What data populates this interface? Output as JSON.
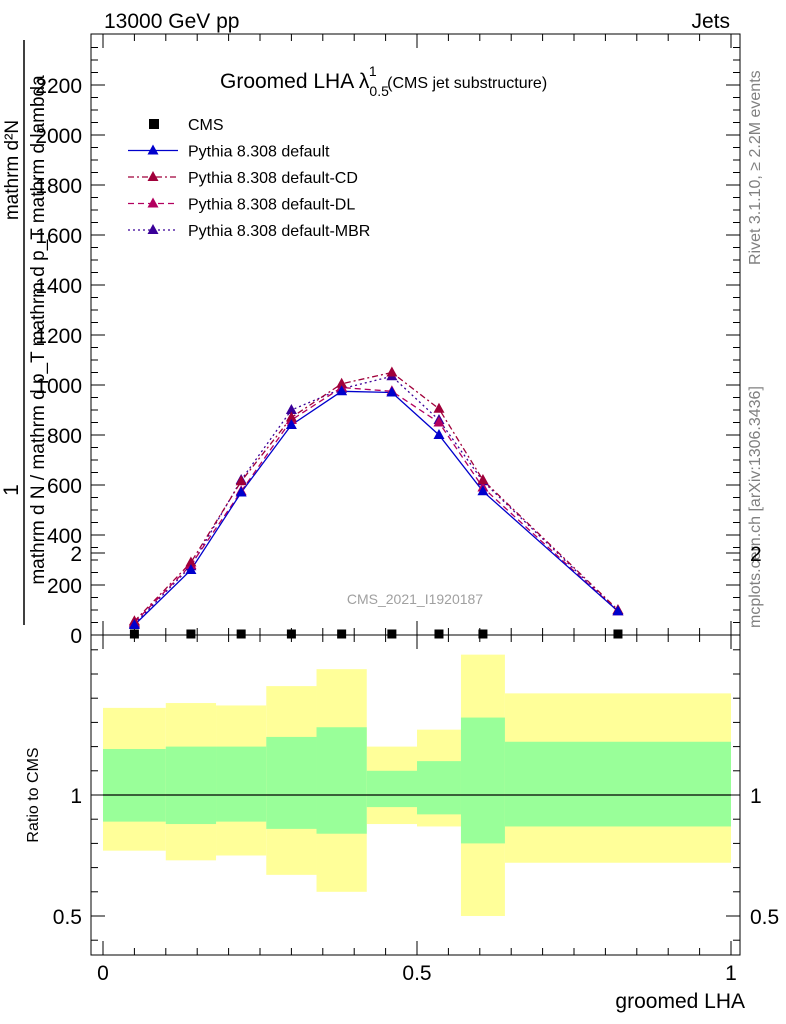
{
  "header": {
    "energy_label": "13000 GeV pp",
    "process_label": "Jets",
    "rivet_label": "Rivet 3.1.10, ≥ 2.2M events",
    "mcplots_label": "mcplots.cern.ch [arXiv:1306.3436]",
    "watermark": "CMS_2021_I1920187"
  },
  "main_title": {
    "prefix": "Groomed LHA ",
    "lambda": "λ",
    "subscript": "0.5",
    "superscript": "1",
    "suffix": " (CMS jet substructure)"
  },
  "ylabel_main": {
    "one": "1",
    "den": "mathrm d N / mathrm d p_T mathrm d p_T mathrm d lambda",
    "num": "mathrm d²N"
  },
  "ylabel_ratio": "Ratio to CMS",
  "xlabel": "groomed LHA",
  "colors": {
    "band_inner": "#99ff99",
    "band_outer": "#ffff99",
    "default": "#0000cc",
    "default_cd": "#a0003a",
    "default_dl": "#b3005f",
    "default_mbr": "#3a0099"
  },
  "chart_data": [
    {
      "type": "line",
      "panel": "main",
      "xlim": [
        0,
        1
      ],
      "ylim": [
        0,
        2400
      ],
      "y_ticks": [
        0,
        200,
        400,
        600,
        800,
        1000,
        1200,
        1400,
        1600,
        1800,
        2000,
        2200
      ],
      "y_tick_labels": [
        "0",
        "200",
        "400",
        "600",
        "800",
        "1000",
        "1200",
        "1400",
        "1600",
        "1800",
        "2000",
        "2200"
      ],
      "x": [
        0.05,
        0.14,
        0.22,
        0.3,
        0.38,
        0.46,
        0.535,
        0.605,
        0.82
      ],
      "legend_position": "top-left",
      "series": [
        {
          "name": "CMS",
          "values": [
            0,
            0,
            0,
            0,
            0,
            0,
            0,
            0,
            0
          ]
        },
        {
          "name": "Pythia 8.308 default",
          "values": [
            40,
            260,
            570,
            840,
            975,
            970,
            800,
            575,
            95
          ]
        },
        {
          "name": "Pythia 8.308 default-CD",
          "values": [
            55,
            290,
            615,
            870,
            1005,
            1050,
            905,
            620,
            100
          ]
        },
        {
          "name": "Pythia 8.308 default-DL",
          "values": [
            50,
            280,
            575,
            860,
            990,
            975,
            850,
            590,
            95
          ]
        },
        {
          "name": "Pythia 8.308 default-MBR",
          "values": [
            45,
            275,
            620,
            900,
            985,
            1035,
            860,
            615,
            95
          ]
        }
      ]
    },
    {
      "type": "area",
      "panel": "ratio",
      "xlim": [
        0,
        1
      ],
      "ylim": [
        0.35,
        2.3
      ],
      "x_ticks": [
        0,
        0.5,
        1
      ],
      "x_tick_labels": [
        "0",
        "0.5",
        "1"
      ],
      "y_ticks": [
        0.5,
        1,
        2
      ],
      "y_tick_labels": [
        "0.5",
        "1",
        "2"
      ],
      "bins": [
        {
          "lo": 0.0,
          "hi": 0.1,
          "inner": [
            0.89,
            1.19
          ],
          "outer": [
            0.77,
            1.36
          ]
        },
        {
          "lo": 0.1,
          "hi": 0.18,
          "inner": [
            0.88,
            1.2
          ],
          "outer": [
            0.73,
            1.38
          ]
        },
        {
          "lo": 0.18,
          "hi": 0.26,
          "inner": [
            0.89,
            1.2
          ],
          "outer": [
            0.75,
            1.37
          ]
        },
        {
          "lo": 0.26,
          "hi": 0.34,
          "inner": [
            0.86,
            1.24
          ],
          "outer": [
            0.67,
            1.45
          ]
        },
        {
          "lo": 0.34,
          "hi": 0.42,
          "inner": [
            0.84,
            1.28
          ],
          "outer": [
            0.6,
            1.52
          ]
        },
        {
          "lo": 0.42,
          "hi": 0.5,
          "inner": [
            0.95,
            1.1
          ],
          "outer": [
            0.88,
            1.2
          ]
        },
        {
          "lo": 0.5,
          "hi": 0.57,
          "inner": [
            0.92,
            1.14
          ],
          "outer": [
            0.87,
            1.27
          ]
        },
        {
          "lo": 0.57,
          "hi": 0.64,
          "inner": [
            0.8,
            1.32
          ],
          "outer": [
            0.5,
            1.58
          ]
        },
        {
          "lo": 0.64,
          "hi": 1.0,
          "inner": [
            0.87,
            1.22
          ],
          "outer": [
            0.72,
            1.42
          ]
        }
      ],
      "reference_line": 1
    }
  ]
}
